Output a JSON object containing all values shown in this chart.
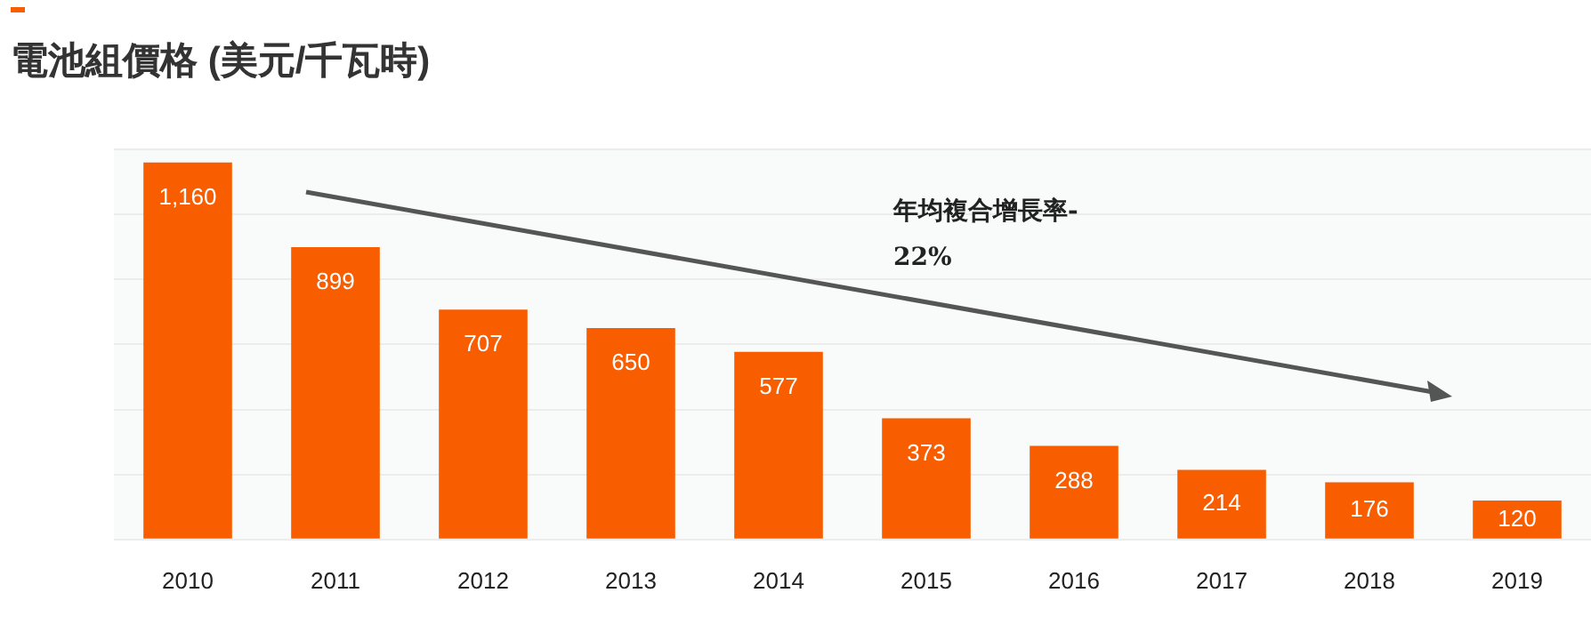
{
  "chart_data": {
    "type": "bar",
    "title": "電池組價格 (美元/千瓦時)",
    "categories": [
      "2010",
      "2011",
      "2012",
      "2013",
      "2014",
      "2015",
      "2016",
      "2017",
      "2018",
      "2019"
    ],
    "values": [
      1160,
      899,
      707,
      650,
      577,
      373,
      288,
      214,
      176,
      120
    ],
    "value_labels": [
      "1,160",
      "899",
      "707",
      "650",
      "577",
      "373",
      "288",
      "214",
      "176",
      "120"
    ],
    "color": "#f85d00",
    "ylim": [
      0,
      1200
    ],
    "yticks": [
      {
        "value": 0,
        "label": null
      },
      {
        "value": 200,
        "label": null
      },
      {
        "value": 400,
        "label": null
      },
      {
        "value": 600,
        "label": null
      },
      {
        "value": 800,
        "label": null
      },
      {
        "value": 1000,
        "label": null
      },
      {
        "value": 1200,
        "label": null
      }
    ],
    "tick_labels": "x",
    "grid": "y",
    "annotations": [
      "年均複合增長率-\n22%"
    ]
  }
}
